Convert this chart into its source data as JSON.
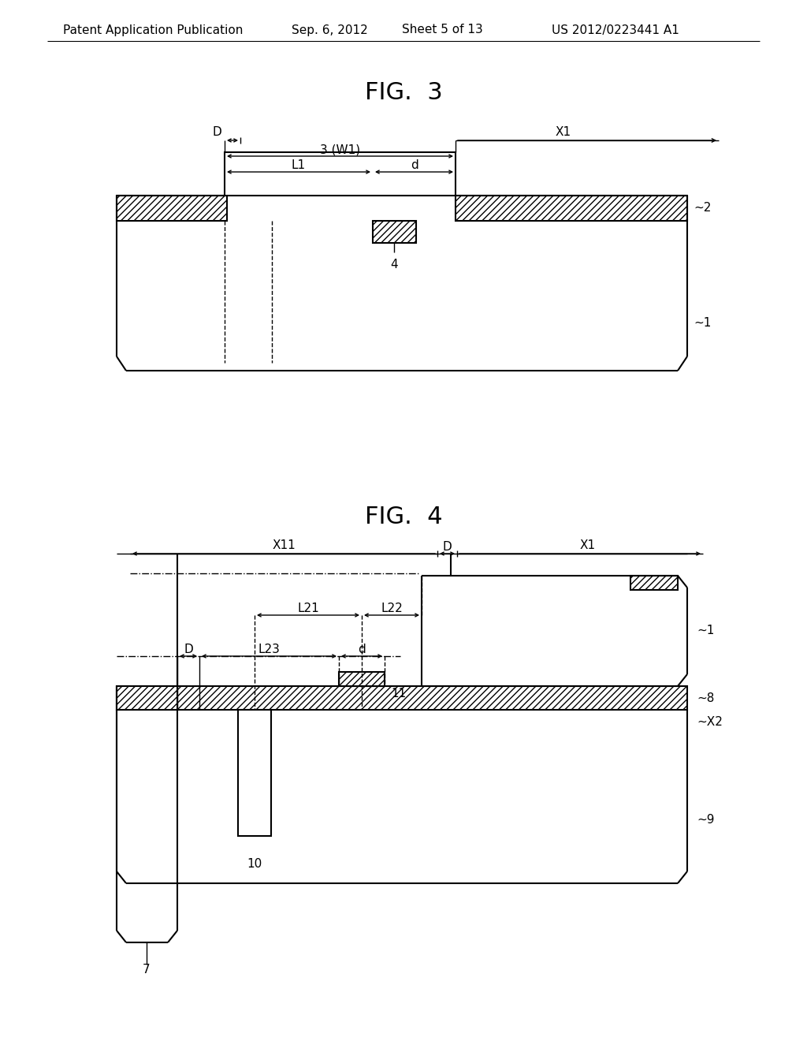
{
  "bg_color": "#ffffff",
  "header": {
    "left": "Patent Application Publication",
    "mid1": "Sep. 6, 2012",
    "mid2": "Sheet 5 of 13",
    "right": "US 2012/0223441 A1"
  },
  "fig3_title": "FIG.  3",
  "fig4_title": "FIG.  4"
}
